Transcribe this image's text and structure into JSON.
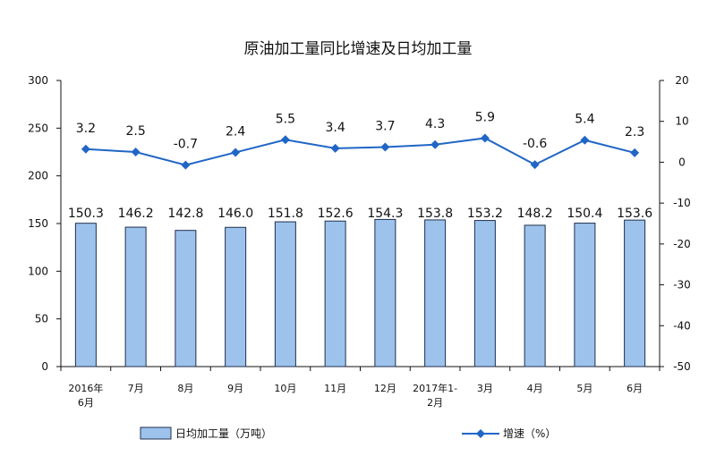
{
  "chart_data": {
    "type": "bar+line",
    "title": "原油加工量同比增速及日均加工量",
    "categories": [
      [
        "2016年",
        "6月"
      ],
      [
        "7月"
      ],
      [
        "8月"
      ],
      [
        "9月"
      ],
      [
        "10月"
      ],
      [
        "11月"
      ],
      [
        "12月"
      ],
      [
        "2017年1-",
        "2月"
      ],
      [
        "3月"
      ],
      [
        "4月"
      ],
      [
        "5月"
      ],
      [
        "6月"
      ]
    ],
    "series": [
      {
        "name": "日均加工量（万吨）",
        "type": "bar",
        "axis": "left",
        "values": [
          150.3,
          146.2,
          142.8,
          146.0,
          151.8,
          152.6,
          154.3,
          153.8,
          153.2,
          148.2,
          150.4,
          153.6
        ],
        "labels": [
          "150.3",
          "146.2",
          "142.8",
          "146.0",
          "151.8",
          "152.6",
          "154.3",
          "153.8",
          "153.2",
          "148.2",
          "150.4",
          "153.6"
        ]
      },
      {
        "name": "增速（%）",
        "type": "line",
        "axis": "right",
        "values": [
          3.2,
          2.5,
          -0.7,
          2.4,
          5.5,
          3.4,
          3.7,
          4.3,
          5.9,
          -0.6,
          5.4,
          2.3
        ],
        "labels": [
          "3.2",
          "2.5",
          "-0.7",
          "2.4",
          "5.5",
          "3.4",
          "3.7",
          "4.3",
          "5.9",
          "-0.6",
          "5.4",
          "2.3"
        ]
      }
    ],
    "y_left": {
      "min": 0,
      "max": 300,
      "ticks": [
        "0",
        "50",
        "100",
        "150",
        "200",
        "250",
        "300"
      ]
    },
    "y_right": {
      "min": -50,
      "max": 20,
      "ticks": [
        "-50",
        "-40",
        "-30",
        "-20",
        "-10",
        "0",
        "10",
        "20"
      ]
    },
    "colors": {
      "bar_fill": "#9dc3ec",
      "bar_stroke": "#1f2f4f",
      "line": "#2066c6",
      "axis": "#111111"
    },
    "legend": {
      "placement": "bottom"
    },
    "grid": false
  }
}
